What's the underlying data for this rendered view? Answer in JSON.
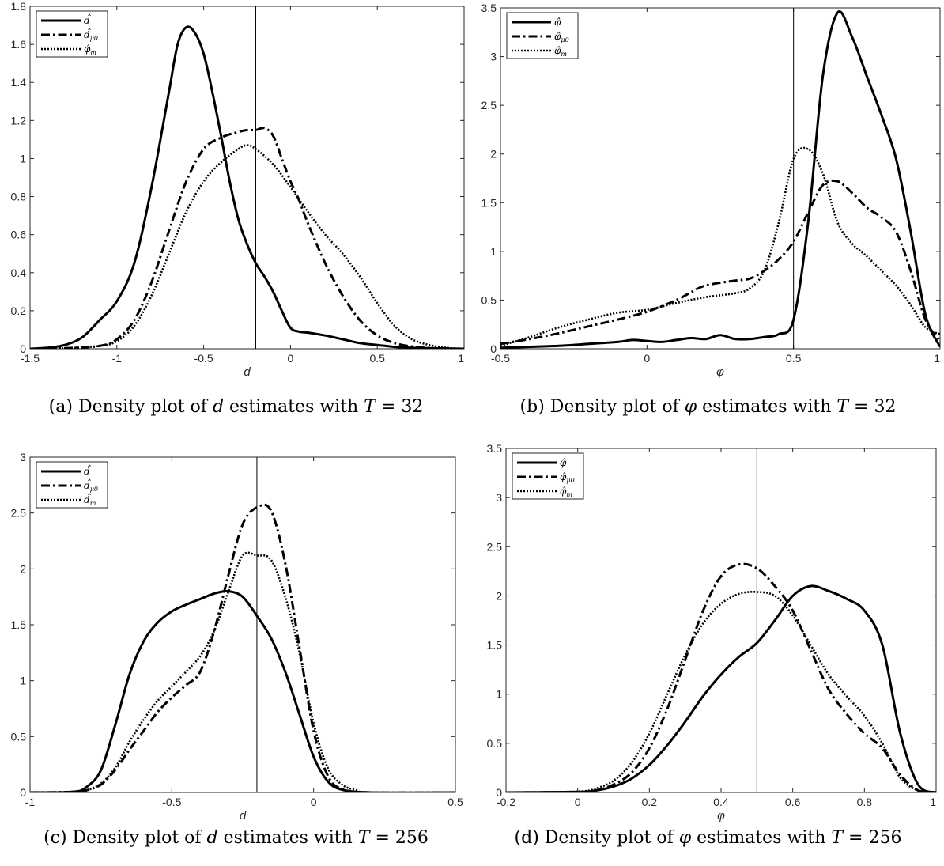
{
  "colors": {
    "line": "#000000",
    "axis": "#262626",
    "background": "#ffffff"
  },
  "chart_data": [
    {
      "id": "a",
      "type": "line",
      "caption": {
        "prefix": "(a) Density plot of ",
        "var": "d",
        "mid": " estimates with ",
        "tvar": "T",
        "eq": " = 32"
      },
      "xlabel": "d",
      "xlim": [
        -1.5,
        1
      ],
      "ylim": [
        0,
        1.8
      ],
      "xticks": [
        "-1.5",
        "-1",
        "-0.5",
        "0",
        "0.5",
        "1"
      ],
      "yticks": [
        "0",
        "0.2",
        "0.4",
        "0.6",
        "0.8",
        "1",
        "1.2",
        "1.4",
        "1.6",
        "1.8"
      ],
      "vline": -0.2,
      "legend_position": "top-left",
      "series": [
        {
          "name": "d̂",
          "style": "solid",
          "x": [
            -1.5,
            -1.4,
            -1.3,
            -1.2,
            -1.1,
            -1.0,
            -0.9,
            -0.8,
            -0.7,
            -0.65,
            -0.6,
            -0.55,
            -0.5,
            -0.45,
            -0.4,
            -0.35,
            -0.3,
            -0.25,
            -0.2,
            -0.15,
            -0.1,
            -0.05,
            0.0,
            0.05,
            0.1,
            0.2,
            0.3,
            0.4,
            0.5,
            0.6,
            0.7,
            0.8,
            0.9,
            1.0
          ],
          "y": [
            0.0,
            0.005,
            0.02,
            0.06,
            0.15,
            0.25,
            0.45,
            0.85,
            1.35,
            1.6,
            1.69,
            1.66,
            1.55,
            1.35,
            1.12,
            0.88,
            0.68,
            0.55,
            0.45,
            0.38,
            0.3,
            0.2,
            0.11,
            0.09,
            0.085,
            0.07,
            0.05,
            0.03,
            0.02,
            0.01,
            0.005,
            0.003,
            0.001,
            0.0
          ]
        },
        {
          "name": "d̂μ0",
          "style": "dashdot",
          "x": [
            -1.5,
            -1.3,
            -1.1,
            -1.0,
            -0.9,
            -0.8,
            -0.7,
            -0.6,
            -0.5,
            -0.4,
            -0.3,
            -0.25,
            -0.2,
            -0.15,
            -0.1,
            -0.05,
            0.0,
            0.05,
            0.1,
            0.2,
            0.3,
            0.4,
            0.5,
            0.6,
            0.7,
            0.8,
            0.9,
            1.0
          ],
          "y": [
            0.0,
            0.003,
            0.015,
            0.05,
            0.15,
            0.35,
            0.62,
            0.88,
            1.05,
            1.11,
            1.14,
            1.15,
            1.15,
            1.16,
            1.12,
            1.0,
            0.88,
            0.78,
            0.66,
            0.45,
            0.28,
            0.15,
            0.07,
            0.03,
            0.012,
            0.004,
            0.001,
            0.0
          ]
        },
        {
          "name": "φ̂m",
          "style": "dotted",
          "x": [
            -1.5,
            -1.3,
            -1.1,
            -1.0,
            -0.9,
            -0.8,
            -0.7,
            -0.6,
            -0.5,
            -0.4,
            -0.3,
            -0.25,
            -0.2,
            -0.1,
            0.0,
            0.1,
            0.2,
            0.3,
            0.4,
            0.5,
            0.6,
            0.7,
            0.8,
            0.9,
            1.0
          ],
          "y": [
            0.0,
            0.003,
            0.015,
            0.04,
            0.12,
            0.28,
            0.5,
            0.72,
            0.88,
            0.98,
            1.05,
            1.07,
            1.05,
            0.97,
            0.85,
            0.72,
            0.6,
            0.5,
            0.38,
            0.24,
            0.12,
            0.05,
            0.02,
            0.005,
            0.0
          ]
        }
      ]
    },
    {
      "id": "b",
      "type": "line",
      "caption": {
        "prefix": "(b) Density plot of ",
        "var": "φ",
        "mid": " estimates with ",
        "tvar": "T",
        "eq": " = 32"
      },
      "xlabel": "φ",
      "xlim": [
        -0.5,
        1
      ],
      "ylim": [
        0,
        3.5
      ],
      "xticks": [
        "-0.5",
        "0",
        "0.5",
        "1"
      ],
      "yticks": [
        "0",
        "0.5",
        "1",
        "1.5",
        "2",
        "2.5",
        "3",
        "3.5"
      ],
      "vline": 0.5,
      "legend_position": "top-left",
      "series": [
        {
          "name": "φ̂",
          "style": "solid",
          "x": [
            -0.5,
            -0.4,
            -0.3,
            -0.2,
            -0.1,
            -0.05,
            0.0,
            0.05,
            0.1,
            0.15,
            0.2,
            0.25,
            0.3,
            0.35,
            0.4,
            0.45,
            0.5,
            0.55,
            0.6,
            0.65,
            0.7,
            0.75,
            0.8,
            0.85,
            0.9,
            0.95,
            1.0
          ],
          "y": [
            0.01,
            0.02,
            0.03,
            0.05,
            0.07,
            0.09,
            0.08,
            0.07,
            0.09,
            0.11,
            0.1,
            0.14,
            0.1,
            0.1,
            0.12,
            0.15,
            0.3,
            1.3,
            2.8,
            3.45,
            3.2,
            2.8,
            2.4,
            1.95,
            1.2,
            0.35,
            0.02
          ]
        },
        {
          "name": "φ̂μ0",
          "style": "dashdot",
          "x": [
            -0.5,
            -0.4,
            -0.3,
            -0.2,
            -0.1,
            0.0,
            0.1,
            0.15,
            0.2,
            0.3,
            0.35,
            0.4,
            0.45,
            0.5,
            0.55,
            0.6,
            0.65,
            0.7,
            0.75,
            0.8,
            0.85,
            0.9,
            0.95,
            1.0
          ],
          "y": [
            0.05,
            0.1,
            0.16,
            0.23,
            0.3,
            0.38,
            0.5,
            0.58,
            0.65,
            0.7,
            0.72,
            0.8,
            0.92,
            1.1,
            1.4,
            1.68,
            1.72,
            1.6,
            1.45,
            1.35,
            1.2,
            0.8,
            0.3,
            0.08
          ]
        },
        {
          "name": "φ̂m",
          "style": "dotted",
          "x": [
            -0.5,
            -0.4,
            -0.3,
            -0.2,
            -0.1,
            0.0,
            0.1,
            0.2,
            0.3,
            0.35,
            0.4,
            0.45,
            0.5,
            0.55,
            0.6,
            0.65,
            0.7,
            0.75,
            0.8,
            0.85,
            0.9,
            0.95,
            1.0
          ],
          "y": [
            0.03,
            0.12,
            0.22,
            0.3,
            0.37,
            0.4,
            0.47,
            0.53,
            0.57,
            0.62,
            0.8,
            1.3,
            1.95,
            2.05,
            1.8,
            1.3,
            1.08,
            0.95,
            0.8,
            0.65,
            0.45,
            0.22,
            0.15
          ]
        }
      ]
    },
    {
      "id": "c",
      "type": "line",
      "caption": {
        "prefix": "(c) Density plot of ",
        "var": "d",
        "mid": " estimates with ",
        "tvar": "T",
        "eq": " = 256"
      },
      "xlabel": "d",
      "xlim": [
        -1,
        0.5
      ],
      "ylim": [
        0,
        3
      ],
      "xticks": [
        "-1",
        "-0.5",
        "0",
        "0.5"
      ],
      "yticks": [
        "0",
        "0.5",
        "1",
        "1.5",
        "2",
        "2.5",
        "3"
      ],
      "vline": -0.2,
      "legend_position": "top-left",
      "series": [
        {
          "name": "d̂",
          "style": "solid",
          "x": [
            -1.0,
            -0.85,
            -0.8,
            -0.75,
            -0.7,
            -0.65,
            -0.6,
            -0.55,
            -0.5,
            -0.45,
            -0.4,
            -0.35,
            -0.3,
            -0.25,
            -0.2,
            -0.15,
            -0.1,
            -0.05,
            0.0,
            0.05,
            0.1,
            0.2,
            0.5
          ],
          "y": [
            0.0,
            0.005,
            0.05,
            0.2,
            0.6,
            1.05,
            1.35,
            1.52,
            1.62,
            1.68,
            1.73,
            1.78,
            1.8,
            1.75,
            1.58,
            1.38,
            1.08,
            0.7,
            0.32,
            0.1,
            0.025,
            0.0,
            0.0
          ]
        },
        {
          "name": "d̂μ0",
          "style": "dashdot",
          "x": [
            -1.0,
            -0.85,
            -0.8,
            -0.75,
            -0.7,
            -0.65,
            -0.6,
            -0.55,
            -0.5,
            -0.45,
            -0.4,
            -0.35,
            -0.3,
            -0.25,
            -0.2,
            -0.15,
            -0.1,
            -0.05,
            0.0,
            0.05,
            0.1,
            0.2,
            0.5
          ],
          "y": [
            0.0,
            0.005,
            0.02,
            0.07,
            0.2,
            0.38,
            0.55,
            0.72,
            0.85,
            0.96,
            1.08,
            1.45,
            1.95,
            2.4,
            2.55,
            2.52,
            2.05,
            1.3,
            0.55,
            0.15,
            0.03,
            0.0,
            0.0
          ]
        },
        {
          "name": "d̂m",
          "style": "dotted",
          "x": [
            -1.0,
            -0.85,
            -0.8,
            -0.75,
            -0.7,
            -0.65,
            -0.6,
            -0.55,
            -0.5,
            -0.45,
            -0.4,
            -0.35,
            -0.3,
            -0.25,
            -0.2,
            -0.15,
            -0.1,
            -0.05,
            0.0,
            0.05,
            0.1,
            0.15,
            0.2,
            0.5
          ],
          "y": [
            0.0,
            0.005,
            0.02,
            0.08,
            0.22,
            0.45,
            0.65,
            0.82,
            0.95,
            1.08,
            1.22,
            1.45,
            1.8,
            2.12,
            2.12,
            2.08,
            1.75,
            1.25,
            0.62,
            0.22,
            0.07,
            0.02,
            0.0,
            0.0
          ]
        }
      ]
    },
    {
      "id": "d",
      "type": "line",
      "caption": {
        "prefix": "(d) Density plot of ",
        "var": "φ",
        "mid": " estimates with ",
        "tvar": "T",
        "eq": " = 256"
      },
      "xlabel": "φ",
      "xlim": [
        -0.2,
        1
      ],
      "ylim": [
        0,
        3.5
      ],
      "xticks": [
        "-0.2",
        "0",
        "0.2",
        "0.4",
        "0.6",
        "0.8",
        "1"
      ],
      "yticks": [
        "0",
        "0.5",
        "1",
        "1.5",
        "2",
        "2.5",
        "3",
        "3.5"
      ],
      "vline": 0.5,
      "legend_position": "top-left",
      "series": [
        {
          "name": "φ̂",
          "style": "solid",
          "x": [
            -0.2,
            0.0,
            0.05,
            0.1,
            0.15,
            0.2,
            0.25,
            0.3,
            0.35,
            0.4,
            0.45,
            0.5,
            0.55,
            0.6,
            0.65,
            0.7,
            0.75,
            0.8,
            0.85,
            0.9,
            0.95,
            1.0
          ],
          "y": [
            0.0,
            0.005,
            0.02,
            0.06,
            0.14,
            0.28,
            0.48,
            0.72,
            0.98,
            1.2,
            1.38,
            1.52,
            1.75,
            2.0,
            2.1,
            2.05,
            1.97,
            1.85,
            1.5,
            0.6,
            0.08,
            0.0
          ]
        },
        {
          "name": "φ̂μ0",
          "style": "dashdot",
          "x": [
            -0.2,
            0.0,
            0.05,
            0.1,
            0.15,
            0.2,
            0.25,
            0.3,
            0.35,
            0.4,
            0.45,
            0.5,
            0.55,
            0.6,
            0.65,
            0.7,
            0.75,
            0.8,
            0.85,
            0.9,
            0.95,
            1.0
          ],
          "y": [
            0.0,
            0.005,
            0.02,
            0.08,
            0.2,
            0.45,
            0.85,
            1.35,
            1.85,
            2.2,
            2.32,
            2.28,
            2.1,
            1.85,
            1.45,
            1.05,
            0.8,
            0.6,
            0.45,
            0.18,
            0.02,
            0.0
          ]
        },
        {
          "name": "φ̂m",
          "style": "dotted",
          "x": [
            -0.2,
            0.0,
            0.05,
            0.1,
            0.15,
            0.2,
            0.25,
            0.3,
            0.35,
            0.4,
            0.45,
            0.5,
            0.55,
            0.6,
            0.65,
            0.7,
            0.75,
            0.8,
            0.85,
            0.9,
            0.95,
            1.0
          ],
          "y": [
            0.0,
            0.01,
            0.04,
            0.12,
            0.3,
            0.6,
            1.0,
            1.4,
            1.72,
            1.92,
            2.02,
            2.04,
            2.0,
            1.8,
            1.5,
            1.2,
            0.98,
            0.78,
            0.5,
            0.15,
            0.02,
            0.0
          ]
        }
      ]
    }
  ]
}
